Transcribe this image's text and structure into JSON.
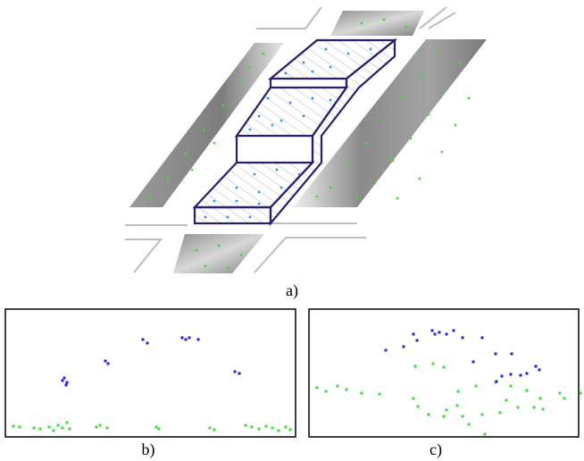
{
  "figure": {
    "captions": {
      "a": "a)",
      "b": "b)",
      "c": "c)"
    },
    "colors": {
      "outline": "#2b1d6b",
      "blue_points": "#1f1fe0",
      "green_points": "#33e033",
      "inner_points": "#2f8fe0",
      "ground_gray": "#8c8c8c",
      "road_line": "#bdbdbd",
      "hatch": "#9aa7c8"
    }
  }
}
